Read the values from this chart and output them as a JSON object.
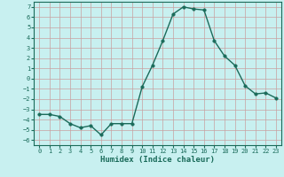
{
  "x": [
    0,
    1,
    2,
    3,
    4,
    5,
    6,
    7,
    8,
    9,
    10,
    11,
    12,
    13,
    14,
    15,
    16,
    17,
    18,
    19,
    20,
    21,
    22,
    23
  ],
  "y": [
    -3.5,
    -3.5,
    -3.7,
    -4.4,
    -4.8,
    -4.6,
    -5.5,
    -4.4,
    -4.4,
    -4.4,
    -0.8,
    1.3,
    3.7,
    6.3,
    7.0,
    6.8,
    6.7,
    3.7,
    2.2,
    1.3,
    -0.7,
    -1.5,
    -1.4,
    -1.9
  ],
  "line_color": "#1a6b5a",
  "marker": "o",
  "markersize": 2.5,
  "linewidth": 1.0,
  "xlabel": "Humidex (Indice chaleur)",
  "xlabel_fontsize": 6.5,
  "xlim": [
    -0.5,
    23.5
  ],
  "ylim": [
    -6.5,
    7.5
  ],
  "yticks": [
    -6,
    -5,
    -4,
    -3,
    -2,
    -1,
    0,
    1,
    2,
    3,
    4,
    5,
    6,
    7
  ],
  "xticks": [
    0,
    1,
    2,
    3,
    4,
    5,
    6,
    7,
    8,
    9,
    10,
    11,
    12,
    13,
    14,
    15,
    16,
    17,
    18,
    19,
    20,
    21,
    22,
    23
  ],
  "grid_color": "#c8a0a0",
  "bg_color": "#c8f0f0",
  "tick_fontsize": 5.0,
  "font_family": "monospace"
}
